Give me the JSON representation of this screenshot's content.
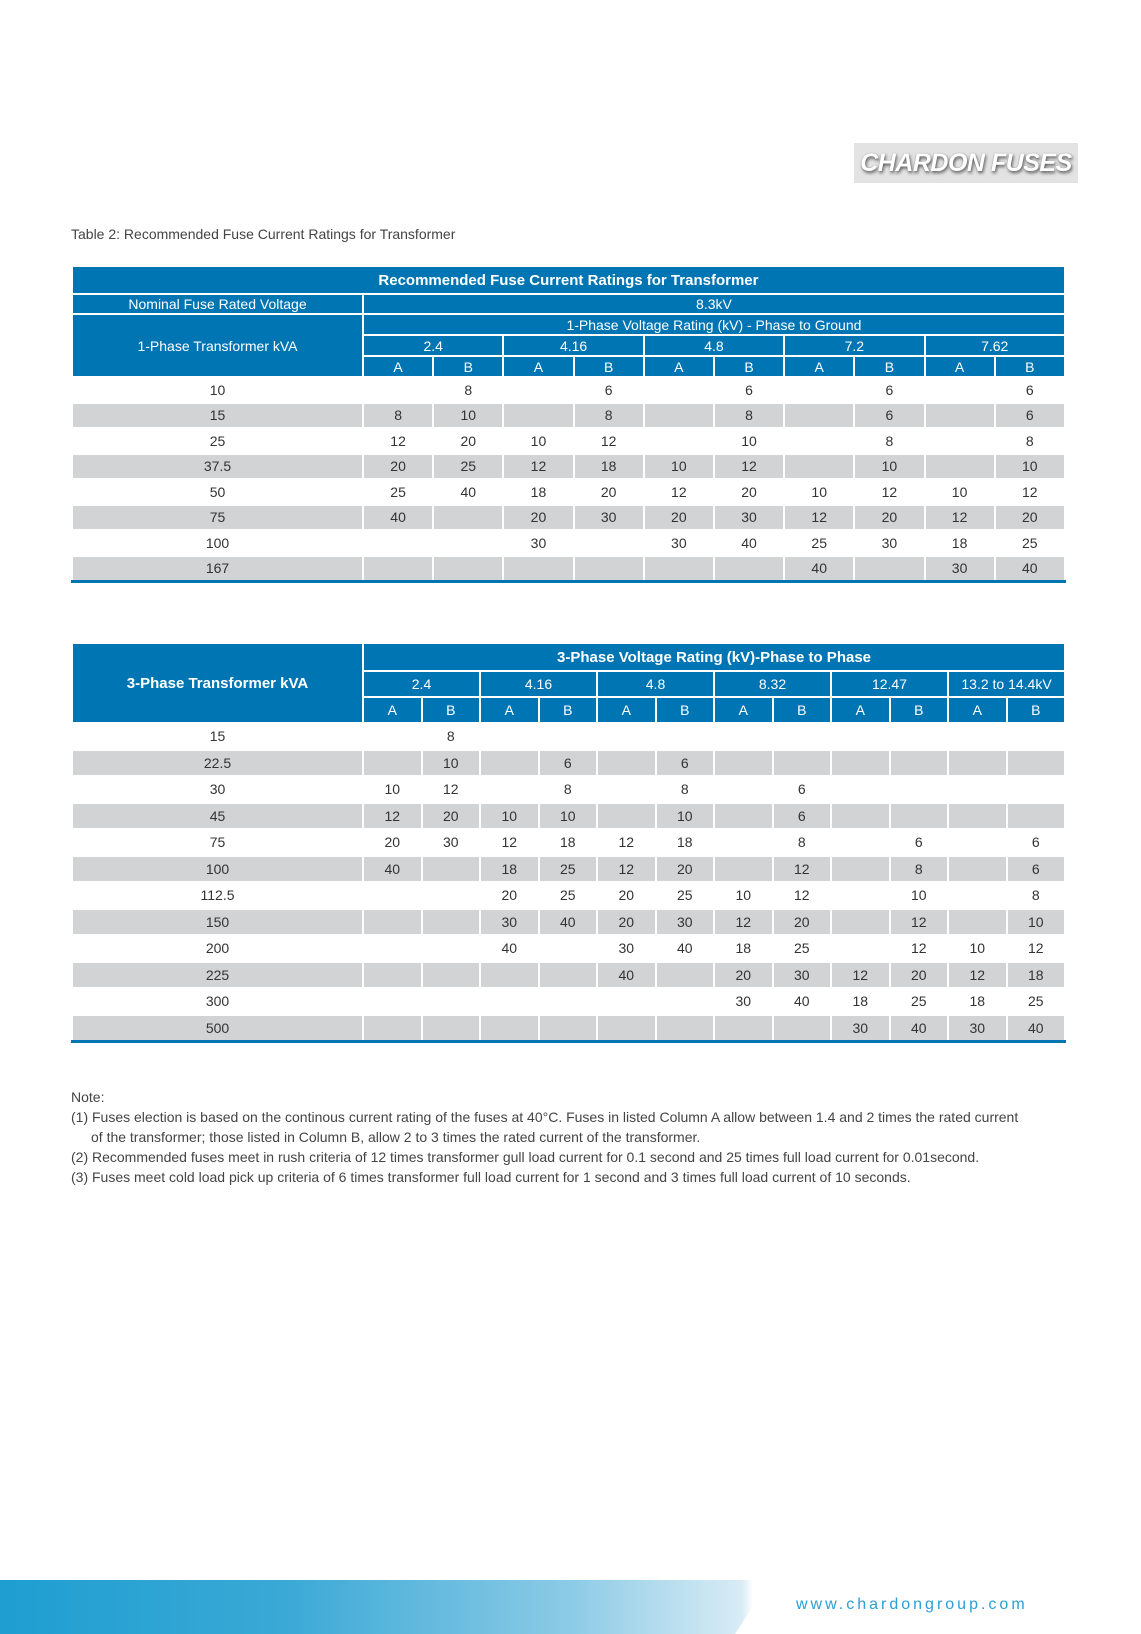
{
  "logo": "CHARDON FUSES",
  "caption": "Table 2: Recommended Fuse Current Ratings for Transformer",
  "t1": {
    "title": "Recommended Fuse Current Ratings for Transformer",
    "nominal_label": "Nominal Fuse Rated Voltage",
    "nominal_value": "8.3kV",
    "kva_label": "1-Phase Transformer kVA",
    "rating_label": "1-Phase Voltage Rating (kV) - Phase to Ground",
    "voltages": [
      "2.4",
      "4.16",
      "4.8",
      "7.2",
      "7.62"
    ],
    "col_a": "A",
    "col_b": "B",
    "rows": [
      {
        "kva": "10",
        "cells": [
          "",
          "8",
          "",
          "6",
          "",
          "6",
          "",
          "6",
          "",
          "6"
        ]
      },
      {
        "kva": "15",
        "cells": [
          "8",
          "10",
          "",
          "8",
          "",
          "8",
          "",
          "6",
          "",
          "6"
        ]
      },
      {
        "kva": "25",
        "cells": [
          "12",
          "20",
          "10",
          "12",
          "",
          "10",
          "",
          "8",
          "",
          "8"
        ]
      },
      {
        "kva": "37.5",
        "cells": [
          "20",
          "25",
          "12",
          "18",
          "10",
          "12",
          "",
          "10",
          "",
          "10"
        ]
      },
      {
        "kva": "50",
        "cells": [
          "25",
          "40",
          "18",
          "20",
          "12",
          "20",
          "10",
          "12",
          "10",
          "12"
        ]
      },
      {
        "kva": "75",
        "cells": [
          "40",
          "",
          "20",
          "30",
          "20",
          "30",
          "12",
          "20",
          "12",
          "20"
        ]
      },
      {
        "kva": "100",
        "cells": [
          "",
          "",
          "30",
          "",
          "30",
          "40",
          "25",
          "30",
          "18",
          "25"
        ]
      },
      {
        "kva": "167",
        "cells": [
          "",
          "",
          "",
          "",
          "",
          "",
          "40",
          "",
          "30",
          "40"
        ]
      }
    ]
  },
  "t2": {
    "kva_label": "3-Phase Transformer kVA",
    "rating_label": "3-Phase Voltage Rating (kV)-Phase to Phase",
    "voltages": [
      "2.4",
      "4.16",
      "4.8",
      "8.32",
      "12.47",
      "13.2 to 14.4kV"
    ],
    "col_a": "A",
    "col_b": "B",
    "rows": [
      {
        "kva": "15",
        "cells": [
          "",
          "8",
          "",
          "",
          "",
          "",
          "",
          "",
          "",
          "",
          "",
          ""
        ]
      },
      {
        "kva": "22.5",
        "cells": [
          "",
          "10",
          "",
          "6",
          "",
          "6",
          "",
          "",
          "",
          "",
          "",
          ""
        ]
      },
      {
        "kva": "30",
        "cells": [
          "10",
          "12",
          "",
          "8",
          "",
          "8",
          "",
          "6",
          "",
          "",
          "",
          ""
        ]
      },
      {
        "kva": "45",
        "cells": [
          "12",
          "20",
          "10",
          "10",
          "",
          "10",
          "",
          "6",
          "",
          "",
          "",
          ""
        ]
      },
      {
        "kva": "75",
        "cells": [
          "20",
          "30",
          "12",
          "18",
          "12",
          "18",
          "",
          "8",
          "",
          "6",
          "",
          "6"
        ]
      },
      {
        "kva": "100",
        "cells": [
          "40",
          "",
          "18",
          "25",
          "12",
          "20",
          "",
          "12",
          "",
          "8",
          "",
          "6"
        ]
      },
      {
        "kva": "112.5",
        "cells": [
          "",
          "",
          "20",
          "25",
          "20",
          "25",
          "10",
          "12",
          "",
          "10",
          "",
          "8"
        ]
      },
      {
        "kva": "150",
        "cells": [
          "",
          "",
          "30",
          "40",
          "20",
          "30",
          "12",
          "20",
          "",
          "12",
          "",
          "10"
        ]
      },
      {
        "kva": "200",
        "cells": [
          "",
          "",
          "40",
          "",
          "30",
          "40",
          "18",
          "25",
          "",
          "12",
          "10",
          "12"
        ]
      },
      {
        "kva": "225",
        "cells": [
          "",
          "",
          "",
          "",
          "40",
          "",
          "20",
          "30",
          "12",
          "20",
          "12",
          "18"
        ]
      },
      {
        "kva": "300",
        "cells": [
          "",
          "",
          "",
          "",
          "",
          "",
          "30",
          "40",
          "18",
          "25",
          "18",
          "25"
        ]
      },
      {
        "kva": "500",
        "cells": [
          "",
          "",
          "",
          "",
          "",
          "",
          "",
          "",
          "30",
          "40",
          "30",
          "40"
        ]
      }
    ]
  },
  "notes": {
    "heading": "Note:",
    "n1a": "(1) Fuses election is based on the continous current rating of the fuses at 40°C. Fuses in listed Column A allow between 1.4 and 2 times the rated current",
    "n1b": "of the transformer; those listed in Column B, allow 2 to 3 times the rated current of the transformer.",
    "n2": "(2) Recommended fuses meet in rush criteria of 12 times transformer gull load current for 0.1 second and 25 times full load current for 0.01second.",
    "n3": "(3) Fuses meet cold load pick up criteria of 6 times transformer full load current for 1 second and 3 times full load current of 10 seconds."
  },
  "footer": {
    "url": "www.chardongroup.com"
  },
  "colors": {
    "blue": "#0075b4",
    "gray": "#d1d3d4"
  }
}
